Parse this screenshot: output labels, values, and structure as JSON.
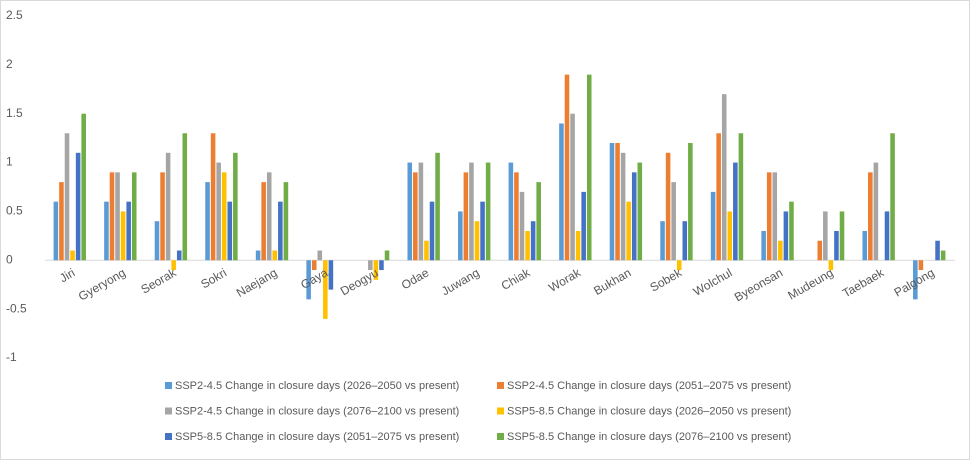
{
  "chart_data": {
    "type": "bar",
    "categories": [
      "Jiri",
      "Gyeryong",
      "Seorak",
      "Sokri",
      "Naejang",
      "Gaya",
      "Deogyu",
      "Odae",
      "Juwang",
      "Chiak",
      "Worak",
      "Bukhan",
      "Sobek",
      "Wolchul",
      "Byeonsan",
      "Mudeung",
      "Taebaek",
      "Palgong"
    ],
    "series": [
      {
        "name": "SSP2-4.5 Change in closure days (2026–2050 vs present)",
        "color": "#5b9bd5",
        "values": [
          0.6,
          0.6,
          0.4,
          0.8,
          0.1,
          -0.4,
          0,
          1.0,
          0.5,
          1.0,
          1.4,
          1.2,
          0.4,
          0.7,
          0.3,
          0,
          0.3,
          -0.4
        ]
      },
      {
        "name": "SSP2-4.5 Change in closure days (2051–2075 vs present)",
        "color": "#ed7d31",
        "values": [
          0.8,
          0.9,
          0.9,
          1.3,
          0.8,
          -0.1,
          0,
          0.9,
          0.9,
          0.9,
          1.9,
          1.2,
          1.1,
          1.3,
          0.9,
          0.2,
          0.9,
          -0.1
        ]
      },
      {
        "name": "SSP2-4.5 Change in closure days (2076–2100 vs present)",
        "color": "#a5a5a5",
        "values": [
          1.3,
          0.9,
          1.1,
          1.0,
          0.9,
          0.1,
          -0.1,
          1.0,
          1.0,
          0.7,
          1.5,
          1.1,
          0.8,
          1.7,
          0.9,
          0.5,
          1.0,
          0
        ]
      },
      {
        "name": "SSP5-8.5 Change in closure days (2026–2050 vs present)",
        "color": "#ffc000",
        "values": [
          0.1,
          0.5,
          -0.1,
          0.9,
          0.1,
          -0.6,
          -0.2,
          0.2,
          0.4,
          0.3,
          0.3,
          0.6,
          -0.1,
          0.5,
          0.2,
          -0.1,
          0,
          0
        ]
      },
      {
        "name": "SSP5-8.5 Change in closure days (2051–2075 vs present)",
        "color": "#4472c4",
        "values": [
          1.1,
          0.6,
          0.1,
          0.6,
          0.6,
          -0.3,
          -0.1,
          0.6,
          0.6,
          0.4,
          0.7,
          0.9,
          0.4,
          1.0,
          0.5,
          0.3,
          0.5,
          0.2
        ]
      },
      {
        "name": "SSP5-8.5 Change in closure days (2076–2100 vs present)",
        "color": "#70ad47",
        "values": [
          1.5,
          0.9,
          1.3,
          1.1,
          0.8,
          0,
          0.1,
          1.1,
          1.0,
          0.8,
          1.9,
          1.0,
          1.2,
          1.3,
          0.6,
          0.5,
          1.3,
          0.1
        ]
      }
    ],
    "ylim": [
      -1,
      2.5
    ],
    "yticks": [
      -1,
      -0.5,
      0,
      0.5,
      1,
      1.5,
      2,
      2.5
    ],
    "grid": false,
    "legend": "bottom"
  }
}
